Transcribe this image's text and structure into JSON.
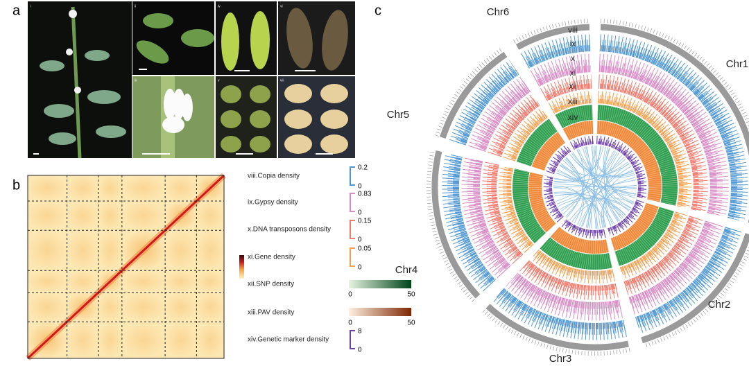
{
  "panel_labels": {
    "a": "a",
    "b": "b",
    "c": "c"
  },
  "photos": [
    "i",
    "ii",
    "iii",
    "iv",
    "v",
    "vi",
    "vii"
  ],
  "legend": [
    {
      "name": "viii.Copia density",
      "max": 0.2,
      "min": 0
    },
    {
      "name": "ix.Gypsy density",
      "max": 0.83,
      "min": 0
    },
    {
      "name": "x.DNA transposons density",
      "max": 0.15,
      "min": 0
    },
    {
      "name": "xi.Gene density",
      "max": 0.05,
      "min": 0
    },
    {
      "name": "xii.SNP density",
      "min": 0,
      "max": 50
    },
    {
      "name": "xiii.PAV density",
      "min": 0,
      "max": 50
    },
    {
      "name": "xiv.Genetic marker density",
      "max": 8,
      "min": 0
    }
  ],
  "chromosomes": [
    "Chr1",
    "Chr2",
    "Chr3",
    "Chr4",
    "Chr5",
    "Chr6"
  ],
  "rings": [
    "viii",
    "ix",
    "x",
    "xi",
    "xii",
    "xiii",
    "xiv"
  ]
}
